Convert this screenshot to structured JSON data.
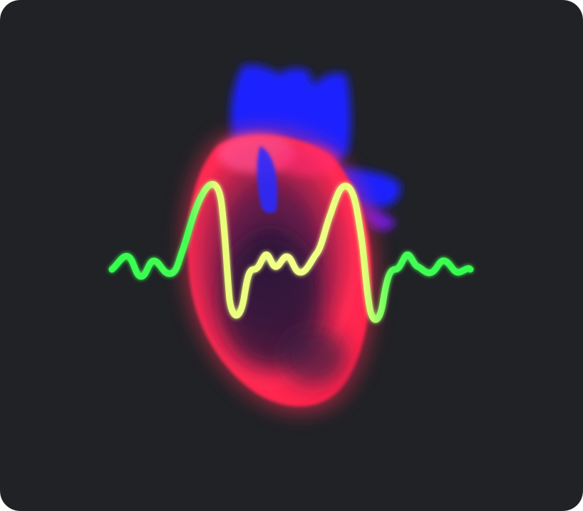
{
  "illustration": {
    "subject": "heart-with-ecg-waveform",
    "colors": {
      "background": "#202226",
      "heart": "#ff2a52",
      "heart_highlight": "#ff4f8f",
      "vessels": "#1f24ff",
      "vessel_glow": "#7a1cff",
      "waveform_outer": "#33ff4f",
      "waveform_center": "#f3ff8a"
    }
  }
}
